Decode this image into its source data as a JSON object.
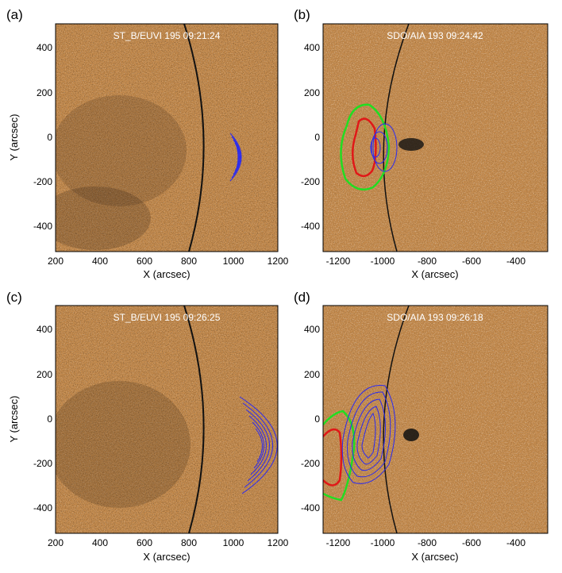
{
  "panels": [
    {
      "label": "(a)",
      "title": "ST_B/EUVI 195 09:21:24",
      "xlabel": "X (arcsec)",
      "ylabel": "Y (arcsec)",
      "xticks": [
        "200",
        "400",
        "600",
        "800",
        "1000",
        "1200"
      ],
      "yticks": [
        "400",
        "200",
        "0",
        "-200",
        "-400"
      ]
    },
    {
      "label": "(b)",
      "title": "SDO/AIA 193 09:24:42",
      "xlabel": "X (arcsec)",
      "ylabel": "",
      "xticks": [
        "-1200",
        "-1000",
        "-800",
        "-600",
        "-400"
      ],
      "yticks": [
        "400",
        "200",
        "0",
        "-200",
        "-400"
      ]
    },
    {
      "label": "(c)",
      "title": "ST_B/EUVI 195 09:26:25",
      "xlabel": "X (arcsec)",
      "ylabel": "Y (arcsec)",
      "xticks": [
        "200",
        "400",
        "600",
        "800",
        "1000",
        "1200"
      ],
      "yticks": [
        "400",
        "200",
        "0",
        "-200",
        "-400"
      ]
    },
    {
      "label": "(d)",
      "title": "SDO/AIA 193 09:26:18",
      "xlabel": "X (arcsec)",
      "ylabel": "",
      "xticks": [
        "-1200",
        "-1000",
        "-800",
        "-600",
        "-400"
      ],
      "yticks": [
        "400",
        "200",
        "0",
        "-200",
        "-400"
      ]
    }
  ],
  "colors": {
    "background": "#c48a4c",
    "limb": "#111111",
    "contour_blue": "#2a2af0",
    "contour_red": "#e01818",
    "contour_green": "#22dd22"
  }
}
